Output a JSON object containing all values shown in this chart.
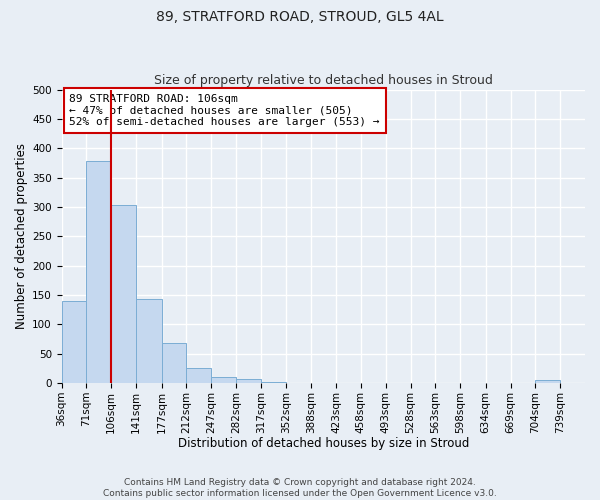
{
  "title": "89, STRATFORD ROAD, STROUD, GL5 4AL",
  "subtitle": "Size of property relative to detached houses in Stroud",
  "xlabel": "Distribution of detached houses by size in Stroud",
  "ylabel": "Number of detached properties",
  "bar_edges": [
    36,
    71,
    106,
    141,
    177,
    212,
    247,
    282,
    317,
    352,
    388,
    423,
    458,
    493,
    528,
    563,
    598,
    634,
    669,
    704,
    739
  ],
  "bar_heights": [
    140,
    378,
    303,
    143,
    69,
    25,
    10,
    7,
    1,
    0,
    0,
    0,
    0,
    0,
    0,
    0,
    0,
    0,
    0,
    5,
    0
  ],
  "bar_color": "#c5d8ef",
  "bar_edge_color": "#7badd4",
  "vline_x": 106,
  "vline_color": "#cc0000",
  "ylim": [
    0,
    500
  ],
  "yticks": [
    0,
    50,
    100,
    150,
    200,
    250,
    300,
    350,
    400,
    450,
    500
  ],
  "xtick_labels": [
    "36sqm",
    "71sqm",
    "106sqm",
    "141sqm",
    "177sqm",
    "212sqm",
    "247sqm",
    "282sqm",
    "317sqm",
    "352sqm",
    "388sqm",
    "423sqm",
    "458sqm",
    "493sqm",
    "528sqm",
    "563sqm",
    "598sqm",
    "634sqm",
    "669sqm",
    "704sqm",
    "739sqm"
  ],
  "annotation_title": "89 STRATFORD ROAD: 106sqm",
  "annotation_line1": "← 47% of detached houses are smaller (505)",
  "annotation_line2": "52% of semi-detached houses are larger (553) →",
  "annotation_box_color": "#cc0000",
  "footer_line1": "Contains HM Land Registry data © Crown copyright and database right 2024.",
  "footer_line2": "Contains public sector information licensed under the Open Government Licence v3.0.",
  "bg_color": "#e8eef5",
  "plot_bg_color": "#e8eef5",
  "grid_color": "#ffffff",
  "title_fontsize": 10,
  "subtitle_fontsize": 9,
  "axis_label_fontsize": 8.5,
  "tick_fontsize": 7.5,
  "annotation_fontsize": 8,
  "footer_fontsize": 6.5
}
